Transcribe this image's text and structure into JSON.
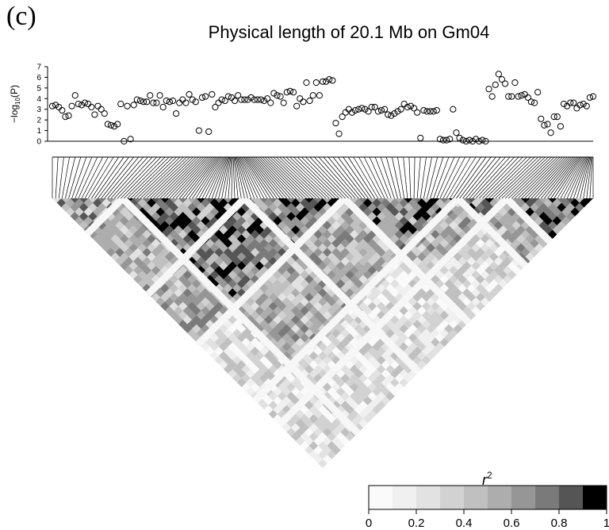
{
  "panel_label": "(c)",
  "chart_data": [
    {
      "type": "scatter",
      "title": "Physical length of 20.1 Mb on Gm04",
      "ylabel": "-log10(P)",
      "ylabel_main": "−log",
      "ylabel_sub": "10",
      "ylabel_rest": "(P)",
      "ylim": [
        0,
        7
      ],
      "yticks": [
        "0",
        "1",
        "2",
        "3",
        "4",
        "5",
        "6",
        "7"
      ],
      "marker": "open-circle",
      "grid": false,
      "y": [
        3.3,
        3.4,
        3.2,
        2.9,
        2.3,
        2.4,
        3.3,
        4.3,
        3.5,
        3.4,
        3.6,
        3.5,
        3.2,
        2.5,
        3.3,
        3.0,
        2.6,
        1.6,
        1.5,
        1.4,
        1.6,
        3.5,
        0.0,
        3.3,
        0.2,
        3.4,
        3.9,
        3.8,
        3.7,
        3.7,
        4.3,
        3.6,
        3.6,
        4.3,
        3.2,
        3.8,
        3.7,
        3.8,
        2.6,
        3.6,
        3.9,
        3.6,
        4.4,
        3.9,
        3.7,
        1.0,
        4.1,
        4.2,
        0.9,
        4.4,
        3.2,
        3.6,
        3.9,
        3.8,
        4.2,
        4.1,
        3.8,
        4.3,
        3.9,
        3.9,
        3.9,
        4.1,
        3.9,
        3.9,
        3.9,
        3.8,
        4.0,
        3.6,
        4.5,
        4.3,
        4.2,
        3.6,
        4.6,
        4.7,
        4.6,
        3.3,
        4.0,
        3.7,
        5.5,
        3.8,
        4.3,
        5.5,
        4.3,
        5.6,
        5.6,
        5.8,
        5.7,
        1.7,
        0.7,
        2.3,
        2.7,
        3.0,
        2.7,
        2.9,
        3.0,
        3.1,
        3.0,
        2.8,
        3.2,
        3.2,
        2.8,
        2.9,
        3.0,
        2.5,
        2.4,
        2.6,
        2.8,
        3.0,
        3.5,
        3.2,
        3.3,
        3.1,
        2.7,
        0.3,
        2.9,
        2.8,
        2.8,
        2.8,
        2.9,
        0.2,
        0.1,
        0.1,
        0.2,
        3.0,
        0.8,
        0.3,
        0.1,
        0.0,
        0.1,
        0.0,
        0.2,
        0.0,
        0.1,
        0.0,
        4.9,
        4.2,
        5.3,
        6.3,
        5.8,
        5.4,
        4.2,
        4.2,
        5.5,
        4.2,
        4.3,
        4.4,
        4.1,
        3.7,
        3.6,
        4.6,
        2.1,
        1.5,
        1.6,
        0.8,
        2.3,
        2.3,
        1.4,
        3.5,
        3.3,
        3.6,
        3.6,
        3.1,
        3.4,
        3.5,
        3.3,
        4.1,
        4.2
      ]
    },
    {
      "type": "heatmap",
      "description_kind": "LD triangle",
      "legend_title": "r",
      "legend_title_sup": "2",
      "legend_ticks": [
        "0",
        "0.2",
        "0.4",
        "0.6",
        "0.8",
        "1"
      ],
      "legend_colors": [
        "#fafafa",
        "#f0f0f0",
        "#e2e2e2",
        "#d2d2d2",
        "#c0c0c0",
        "#adadad",
        "#969696",
        "#7a7a7a",
        "#555555",
        "#000000"
      ],
      "blocks": [
        {
          "start": 0.0,
          "end": 0.13,
          "mean": 0.55
        },
        {
          "start": 0.13,
          "end": 0.54,
          "mean": 0.72
        },
        {
          "start": 0.54,
          "end": 0.75,
          "mean": 0.7
        },
        {
          "start": 0.75,
          "end": 0.84,
          "mean": 0.6
        },
        {
          "start": 0.84,
          "end": 1.0,
          "mean": 0.75
        }
      ],
      "gaps": [
        0.13,
        0.355,
        0.54,
        0.75,
        0.84
      ]
    }
  ]
}
